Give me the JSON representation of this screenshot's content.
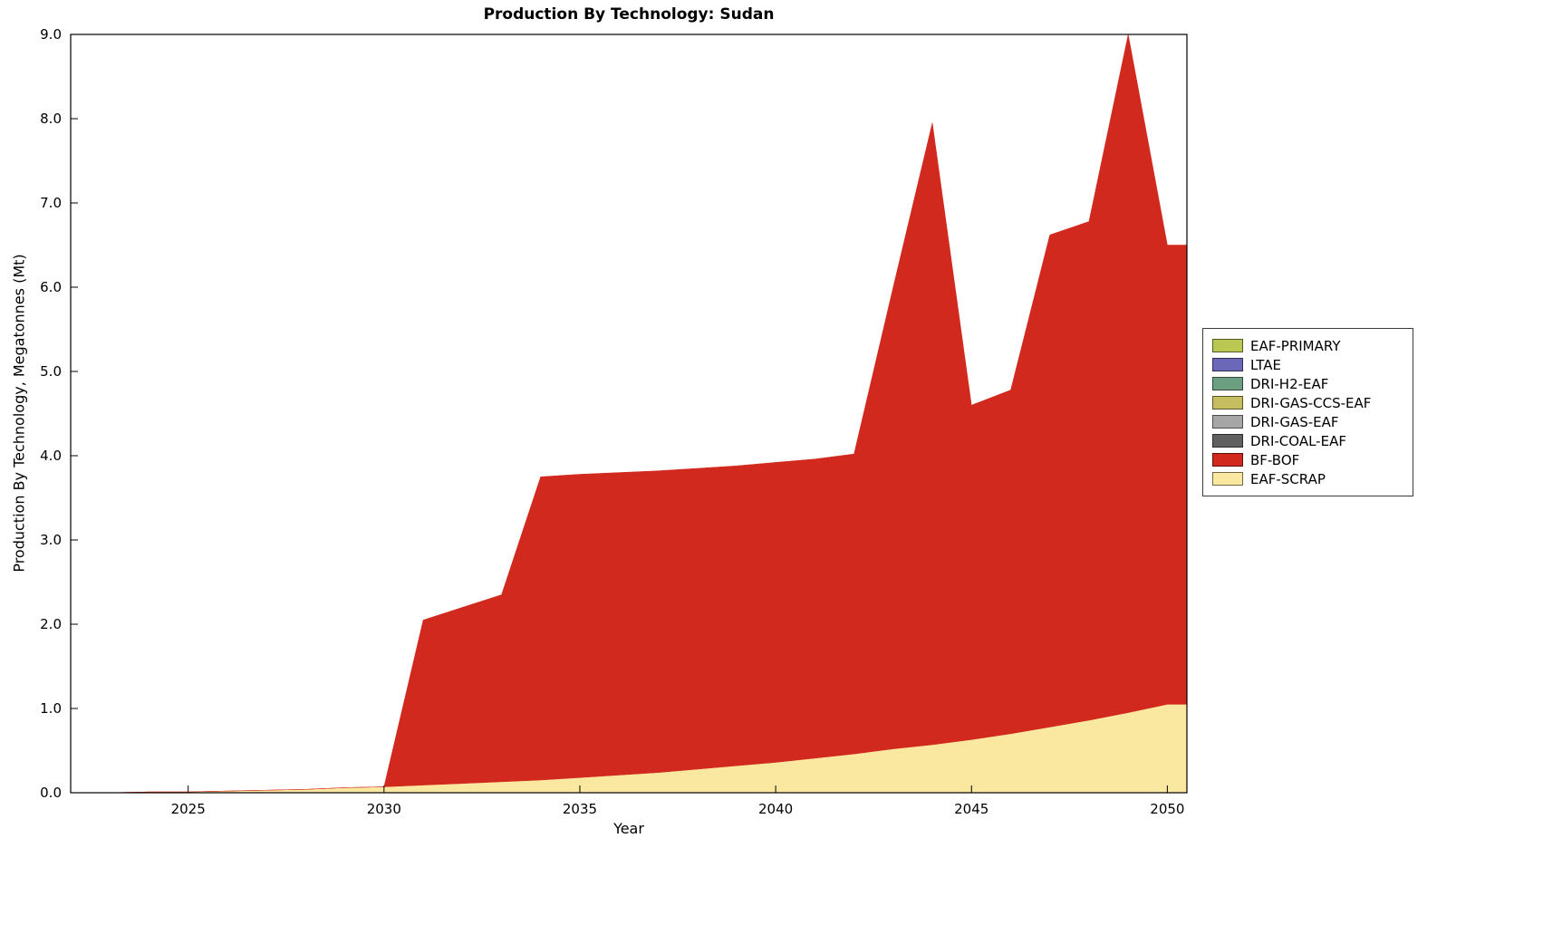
{
  "chart_data": {
    "type": "area",
    "stacked": true,
    "title": "Production By Technology: Sudan",
    "xlabel": "Year",
    "ylabel": "Production By Technology, Megatonnes (Mt)",
    "xlim": [
      2022,
      2050.5
    ],
    "ylim": [
      0,
      9
    ],
    "grid": false,
    "legend_position": "right-outside",
    "x_tick_labels": [
      "2025",
      "2030",
      "2035",
      "2040",
      "2045",
      "2050"
    ],
    "y_tick_labels": [
      "0.0",
      "1.0",
      "2.0",
      "3.0",
      "4.0",
      "5.0",
      "6.0",
      "7.0",
      "8.0",
      "9.0"
    ],
    "x": [
      2022,
      2023,
      2024,
      2025,
      2026,
      2027,
      2028,
      2029,
      2030,
      2031,
      2032,
      2033,
      2034,
      2035,
      2036,
      2037,
      2038,
      2039,
      2040,
      2041,
      2042,
      2043,
      2044,
      2045,
      2046,
      2047,
      2048,
      2049,
      2050
    ],
    "series": [
      {
        "name": "EAF-SCRAP",
        "color": "#FAE7A0",
        "values": [
          0,
          0,
          0.01,
          0.01,
          0.02,
          0.03,
          0.04,
          0.06,
          0.07,
          0.09,
          0.11,
          0.13,
          0.15,
          0.18,
          0.21,
          0.24,
          0.28,
          0.32,
          0.36,
          0.41,
          0.46,
          0.52,
          0.57,
          0.63,
          0.7,
          0.78,
          0.86,
          0.95,
          1.05
        ]
      },
      {
        "name": "BF-BOF",
        "color": "#D2291E",
        "values": [
          0,
          0,
          0,
          0,
          0,
          0,
          0,
          0,
          0,
          1.96,
          2.09,
          2.22,
          3.6,
          3.6,
          3.59,
          3.58,
          3.57,
          3.56,
          3.56,
          3.55,
          3.56,
          5.48,
          7.38,
          3.97,
          4.08,
          5.84,
          5.92,
          8.05,
          5.45
        ]
      },
      {
        "name": "DRI-COAL-EAF",
        "color": "#606060",
        "values": [
          0,
          0,
          0,
          0,
          0,
          0,
          0,
          0,
          0,
          0,
          0,
          0,
          0,
          0,
          0,
          0,
          0,
          0,
          0,
          0,
          0,
          0,
          0,
          0,
          0,
          0,
          0,
          0,
          0
        ]
      },
      {
        "name": "DRI-GAS-EAF",
        "color": "#A6A6A6",
        "values": [
          0,
          0,
          0,
          0,
          0,
          0,
          0,
          0,
          0,
          0,
          0,
          0,
          0,
          0,
          0,
          0,
          0,
          0,
          0,
          0,
          0,
          0,
          0,
          0,
          0,
          0,
          0,
          0,
          0
        ]
      },
      {
        "name": "DRI-GAS-CCS-EAF",
        "color": "#C6BD61",
        "values": [
          0,
          0,
          0,
          0,
          0,
          0,
          0,
          0,
          0,
          0,
          0,
          0,
          0,
          0,
          0,
          0,
          0,
          0,
          0,
          0,
          0,
          0,
          0,
          0,
          0,
          0,
          0,
          0,
          0
        ]
      },
      {
        "name": "DRI-H2-EAF",
        "color": "#6C9F82",
        "values": [
          0,
          0,
          0,
          0,
          0,
          0,
          0,
          0,
          0,
          0,
          0,
          0,
          0,
          0,
          0,
          0,
          0,
          0,
          0,
          0,
          0,
          0,
          0,
          0,
          0,
          0,
          0,
          0,
          0
        ]
      },
      {
        "name": "LTAE",
        "color": "#6B68B9",
        "values": [
          0,
          0,
          0,
          0,
          0,
          0,
          0,
          0,
          0,
          0,
          0,
          0,
          0,
          0,
          0,
          0,
          0,
          0,
          0,
          0,
          0,
          0,
          0,
          0,
          0,
          0,
          0,
          0,
          0
        ]
      },
      {
        "name": "EAF-PRIMARY",
        "color": "#BAC753",
        "values": [
          0,
          0,
          0,
          0,
          0,
          0,
          0,
          0,
          0,
          0,
          0,
          0,
          0,
          0,
          0,
          0,
          0,
          0,
          0,
          0,
          0,
          0,
          0,
          0,
          0,
          0,
          0,
          0,
          0
        ]
      }
    ],
    "totals_top_edge": [
      0,
      0,
      0.01,
      0.01,
      0.02,
      0.03,
      0.04,
      0.06,
      0.07,
      2.05,
      2.2,
      2.35,
      3.75,
      3.78,
      3.8,
      3.82,
      3.85,
      3.88,
      3.92,
      3.96,
      4.02,
      6.0,
      7.95,
      4.6,
      4.78,
      6.62,
      6.78,
      9.0,
      6.5
    ]
  }
}
